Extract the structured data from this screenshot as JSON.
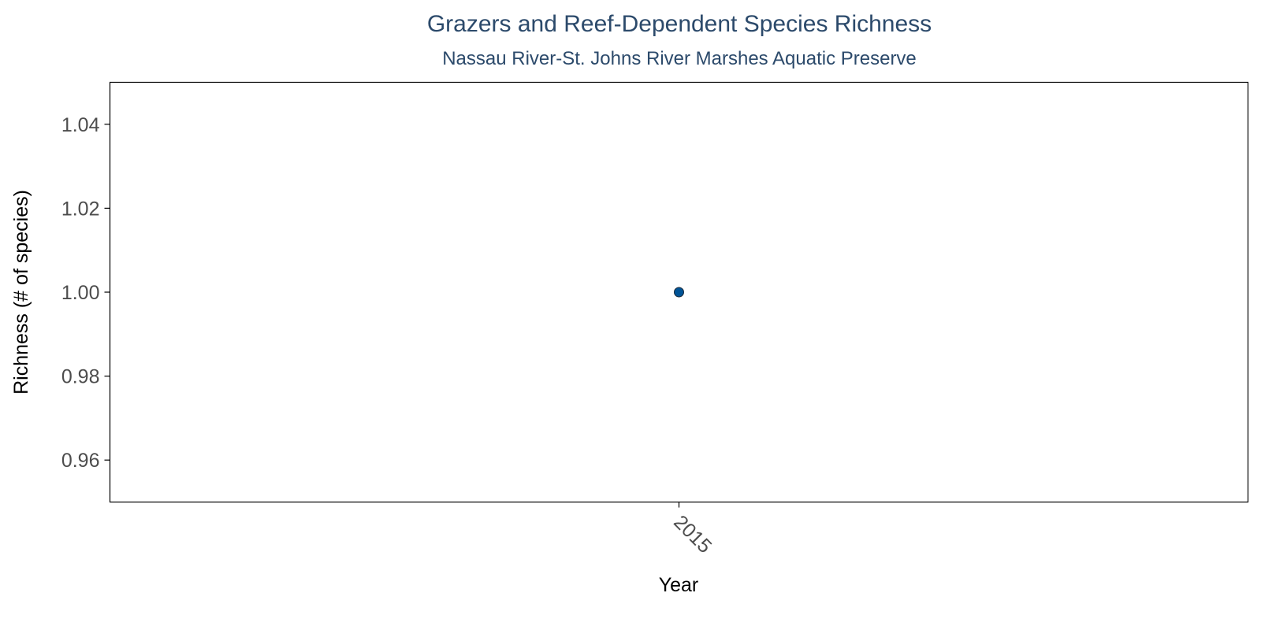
{
  "chart_data": {
    "type": "scatter",
    "title": "Grazers and Reef-Dependent Species Richness",
    "subtitle": "Nassau River-St. Johns River Marshes Aquatic Preserve",
    "xlabel": "Year",
    "ylabel": "Richness (# of species)",
    "x_categories": [
      "2015"
    ],
    "y_ticks": [
      0.96,
      0.98,
      1.0,
      1.02,
      1.04
    ],
    "y_tick_labels": [
      "0.96",
      "0.98",
      "1.00",
      "1.02",
      "1.04"
    ],
    "ylim": [
      0.95,
      1.05
    ],
    "grid": false,
    "legend": "none",
    "series": [
      {
        "points": [
          {
            "x": "2015",
            "y": 1.0
          }
        ]
      }
    ],
    "colors": {
      "point_fill": "#005396",
      "point_stroke": "#1b2a3a",
      "title": "#2c4a6b",
      "axis": "#000000",
      "tick_label": "#4d4d4d"
    }
  }
}
